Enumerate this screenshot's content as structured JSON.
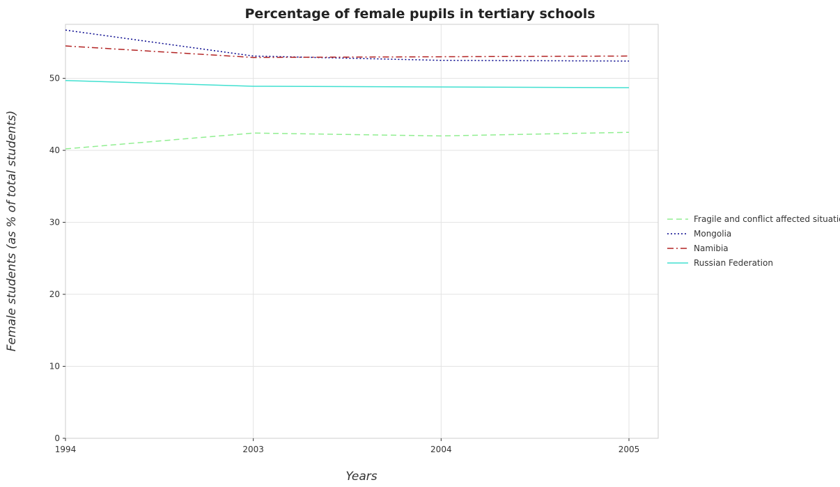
{
  "chart_data": {
    "type": "line",
    "title": "Percentage of female pupils in tertiary schools",
    "xlabel": "Years",
    "ylabel": "Female students (as % of total students)",
    "categories": [
      "1994",
      "2003",
      "2004",
      "2005"
    ],
    "ylim": [
      0,
      57.5
    ],
    "yticks": [
      0,
      10,
      20,
      30,
      40,
      50
    ],
    "ytick_labels": [
      "0",
      "10",
      "20",
      "30",
      "40",
      "50"
    ],
    "grid": true,
    "legend_position": "right",
    "series": [
      {
        "name": "Fragile and conflict affected situations",
        "color": "#90ee90",
        "dash": "dashed",
        "values": [
          40.2,
          42.4,
          42.0,
          42.5
        ]
      },
      {
        "name": "Mongolia",
        "color": "#00008b",
        "dash": "dotted",
        "values": [
          56.7,
          53.1,
          52.5,
          52.4
        ]
      },
      {
        "name": "Namibia",
        "color": "#b22222",
        "dash": "dashdot",
        "values": [
          54.5,
          52.9,
          53.0,
          53.1
        ]
      },
      {
        "name": "Russian Federation",
        "color": "#40e0d0",
        "dash": "solid",
        "values": [
          49.7,
          48.9,
          48.8,
          48.7
        ]
      }
    ]
  }
}
